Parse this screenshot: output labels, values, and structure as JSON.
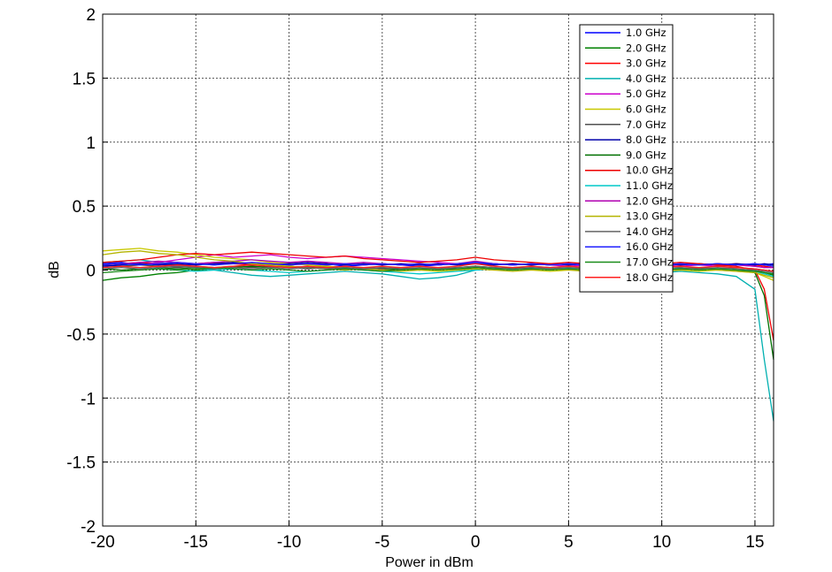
{
  "chart_data": {
    "type": "line",
    "title": "",
    "xlabel": "Power in dBm",
    "ylabel": "dB",
    "xlim": [
      -20,
      16
    ],
    "ylim": [
      -2,
      2
    ],
    "x_ticks": [
      "-20",
      "-15",
      "-10",
      "-5",
      "0",
      "5",
      "10",
      "15"
    ],
    "y_ticks": [
      "2",
      "1.5",
      "1",
      "0.5",
      "0",
      "-0.5",
      "-1",
      "-1.5",
      "-2"
    ],
    "grid": true,
    "legend_position": "top-right",
    "x": [
      -20,
      -19,
      -18,
      -17,
      -16,
      -15,
      -14,
      -13,
      -12,
      -11,
      -10,
      -9,
      -8,
      -7,
      -6,
      -5,
      -4,
      -3,
      -2,
      -1,
      0,
      1,
      2,
      3,
      4,
      5,
      6,
      7,
      8,
      9,
      10,
      11,
      12,
      13,
      14,
      15,
      15.5,
      16
    ],
    "series": [
      {
        "name": "1.0 GHz",
        "color": "#0000ff",
        "values": [
          0.05,
          0.06,
          0.04,
          0.05,
          0.03,
          0.05,
          0.04,
          0.06,
          0.05,
          0.04,
          0.05,
          0.04,
          0.05,
          0.03,
          0.04,
          0.05,
          0.04,
          0.03,
          0.04,
          0.05,
          0.06,
          0.05,
          0.04,
          0.05,
          0.04,
          0.05,
          0.04,
          0.05,
          0.04,
          0.05,
          0.04,
          0.05,
          0.04,
          0.05,
          0.04,
          0.05,
          0.04,
          0.05
        ]
      },
      {
        "name": "2.0 GHz",
        "color": "#008000",
        "values": [
          -0.08,
          -0.06,
          -0.05,
          -0.03,
          -0.02,
          0.0,
          0.01,
          0.02,
          0.03,
          0.02,
          0.03,
          0.02,
          0.03,
          0.02,
          0.01,
          0.02,
          0.01,
          0.0,
          0.01,
          0.02,
          0.03,
          0.02,
          0.01,
          0.02,
          0.01,
          0.02,
          0.01,
          0.02,
          0.01,
          0.02,
          0.01,
          0.02,
          0.0,
          0.01,
          0.0,
          0.0,
          -0.02,
          -0.04
        ]
      },
      {
        "name": "3.0 GHz",
        "color": "#ff0000",
        "values": [
          0.04,
          0.05,
          0.06,
          0.05,
          0.04,
          0.05,
          0.06,
          0.05,
          0.04,
          0.05,
          0.04,
          0.05,
          0.04,
          0.05,
          0.04,
          0.05,
          0.04,
          0.05,
          0.04,
          0.05,
          0.05,
          0.04,
          0.05,
          0.04,
          0.05,
          0.04,
          0.05,
          0.04,
          0.05,
          0.04,
          0.05,
          0.04,
          0.05,
          0.04,
          0.05,
          0.04,
          0.03,
          0.02
        ]
      },
      {
        "name": "4.0 GHz",
        "color": "#00b0b0",
        "values": [
          0.06,
          0.07,
          0.08,
          0.06,
          0.04,
          0.02,
          0.0,
          -0.02,
          -0.04,
          -0.05,
          -0.04,
          -0.03,
          -0.02,
          -0.01,
          -0.02,
          -0.03,
          -0.05,
          -0.07,
          -0.06,
          -0.04,
          0.0,
          0.01,
          0.02,
          0.03,
          0.02,
          0.03,
          0.02,
          0.01,
          0.0,
          -0.01,
          -0.02,
          -0.01,
          -0.02,
          -0.03,
          -0.05,
          -0.15,
          -0.7,
          -1.18
        ]
      },
      {
        "name": "5.0 GHz",
        "color": "#cc00cc",
        "values": [
          0.02,
          0.03,
          0.04,
          0.06,
          0.08,
          0.1,
          0.12,
          0.1,
          0.11,
          0.12,
          0.1,
          0.09,
          0.1,
          0.11,
          0.1,
          0.09,
          0.08,
          0.07,
          0.06,
          0.05,
          0.06,
          0.05,
          0.04,
          0.05,
          0.04,
          0.03,
          0.04,
          0.03,
          0.04,
          0.03,
          0.04,
          0.03,
          0.04,
          0.03,
          0.04,
          0.03,
          0.02,
          0.02
        ]
      },
      {
        "name": "6.0 GHz",
        "color": "#c8c800",
        "values": [
          0.15,
          0.16,
          0.17,
          0.15,
          0.14,
          0.12,
          0.1,
          0.09,
          0.08,
          0.06,
          0.05,
          0.04,
          0.03,
          0.02,
          0.01,
          0.0,
          0.01,
          0.0,
          -0.01,
          0.0,
          0.01,
          0.0,
          0.01,
          0.0,
          -0.01,
          0.0,
          0.01,
          0.0,
          -0.01,
          0.0,
          0.01,
          0.0,
          -0.01,
          0.0,
          -0.01,
          -0.02,
          -0.05,
          -0.08
        ]
      },
      {
        "name": "7.0 GHz",
        "color": "#505050",
        "values": [
          0.04,
          0.03,
          0.04,
          0.03,
          0.02,
          0.03,
          0.02,
          0.03,
          0.02,
          0.03,
          0.02,
          0.01,
          0.02,
          0.01,
          0.02,
          0.01,
          0.02,
          0.01,
          0.02,
          0.01,
          0.02,
          0.01,
          0.02,
          0.01,
          0.02,
          0.01,
          0.02,
          0.01,
          0.02,
          0.01,
          0.02,
          0.01,
          0.02,
          0.01,
          0.02,
          0.01,
          0.0,
          -0.01
        ]
      },
      {
        "name": "8.0 GHz",
        "color": "#0000aa",
        "values": [
          0.03,
          0.04,
          0.05,
          0.04,
          0.05,
          0.04,
          0.05,
          0.06,
          0.05,
          0.04,
          0.05,
          0.06,
          0.05,
          0.04,
          0.05,
          0.04,
          0.05,
          0.04,
          0.05,
          0.04,
          0.05,
          0.04,
          0.05,
          0.04,
          0.05,
          0.04,
          0.05,
          0.04,
          0.05,
          0.04,
          0.05,
          0.04,
          0.05,
          0.04,
          0.05,
          0.04,
          0.05,
          0.04
        ]
      },
      {
        "name": "9.0 GHz",
        "color": "#007000",
        "values": [
          0.01,
          0.0,
          0.01,
          0.02,
          0.01,
          0.02,
          0.01,
          0.02,
          0.03,
          0.02,
          0.03,
          0.02,
          0.01,
          0.02,
          0.01,
          0.0,
          0.01,
          0.0,
          0.01,
          0.0,
          0.02,
          0.01,
          0.02,
          0.01,
          0.02,
          0.01,
          0.02,
          0.01,
          0.02,
          0.01,
          0.02,
          0.01,
          0.02,
          0.01,
          0.0,
          -0.02,
          -0.2,
          -0.7
        ]
      },
      {
        "name": "10.0 GHz",
        "color": "#ee0000",
        "values": [
          0.06,
          0.07,
          0.08,
          0.1,
          0.12,
          0.13,
          0.12,
          0.13,
          0.14,
          0.13,
          0.12,
          0.11,
          0.1,
          0.11,
          0.09,
          0.08,
          0.07,
          0.06,
          0.07,
          0.08,
          0.1,
          0.08,
          0.07,
          0.06,
          0.05,
          0.06,
          0.05,
          0.06,
          0.05,
          0.06,
          0.05,
          0.06,
          0.05,
          0.04,
          0.03,
          0.0,
          -0.15,
          -0.55
        ]
      },
      {
        "name": "11.0 GHz",
        "color": "#00c8c8",
        "values": [
          0.02,
          0.03,
          0.02,
          0.01,
          0.0,
          -0.01,
          0.0,
          0.01,
          0.0,
          -0.01,
          -0.02,
          -0.01,
          0.0,
          0.01,
          0.0,
          -0.01,
          -0.02,
          -0.03,
          -0.02,
          -0.01,
          0.0,
          0.01,
          0.0,
          0.01,
          0.02,
          0.01,
          0.02,
          0.01,
          0.02,
          0.01,
          0.02,
          0.01,
          0.0,
          0.01,
          0.0,
          -0.01,
          -0.03,
          -0.05
        ]
      },
      {
        "name": "12.0 GHz",
        "color": "#b000b0",
        "values": [
          0.04,
          0.05,
          0.06,
          0.07,
          0.06,
          0.05,
          0.06,
          0.07,
          0.08,
          0.07,
          0.06,
          0.07,
          0.06,
          0.05,
          0.06,
          0.05,
          0.04,
          0.05,
          0.04,
          0.05,
          0.07,
          0.05,
          0.04,
          0.05,
          0.04,
          0.05,
          0.04,
          0.05,
          0.04,
          0.05,
          0.04,
          0.05,
          0.04,
          0.05,
          0.04,
          0.03,
          0.02,
          0.02
        ]
      },
      {
        "name": "13.0 GHz",
        "color": "#b4b400",
        "values": [
          0.12,
          0.14,
          0.15,
          0.13,
          0.12,
          0.1,
          0.08,
          0.07,
          0.05,
          0.04,
          0.03,
          0.02,
          0.01,
          0.0,
          0.01,
          0.0,
          -0.01,
          0.0,
          0.01,
          0.0,
          0.01,
          0.0,
          -0.01,
          0.0,
          0.01,
          0.0,
          -0.01,
          0.0,
          0.01,
          0.0,
          -0.01,
          0.0,
          0.01,
          0.0,
          -0.01,
          -0.02,
          -0.04,
          -0.06
        ]
      },
      {
        "name": "14.0 GHz",
        "color": "#646464",
        "values": [
          0.01,
          0.02,
          0.01,
          0.02,
          0.03,
          0.02,
          0.01,
          0.02,
          0.01,
          0.02,
          0.01,
          0.02,
          0.01,
          0.02,
          0.01,
          0.02,
          0.01,
          0.02,
          0.01,
          0.02,
          0.03,
          0.02,
          0.01,
          0.02,
          0.01,
          0.02,
          0.01,
          0.02,
          0.01,
          0.02,
          0.01,
          0.02,
          0.01,
          0.02,
          0.01,
          0.0,
          -0.01,
          -0.02
        ]
      },
      {
        "name": "16.0 GHz",
        "color": "#2020ff",
        "values": [
          0.04,
          0.05,
          0.04,
          0.05,
          0.06,
          0.05,
          0.04,
          0.05,
          0.06,
          0.05,
          0.04,
          0.05,
          0.04,
          0.05,
          0.04,
          0.05,
          0.04,
          0.05,
          0.04,
          0.05,
          0.06,
          0.05,
          0.04,
          0.05,
          0.04,
          0.05,
          0.04,
          0.05,
          0.04,
          0.05,
          0.04,
          0.05,
          0.04,
          0.05,
          0.04,
          0.05,
          0.04,
          0.03
        ]
      },
      {
        "name": "17.0 GHz",
        "color": "#1a8c1a",
        "values": [
          -0.02,
          -0.01,
          0.0,
          0.01,
          0.0,
          0.01,
          0.02,
          0.01,
          0.0,
          0.01,
          0.0,
          -0.01,
          0.0,
          0.01,
          0.0,
          -0.01,
          0.0,
          0.01,
          0.0,
          0.01,
          0.02,
          0.01,
          0.0,
          0.01,
          0.0,
          0.01,
          0.0,
          0.01,
          0.0,
          0.01,
          0.0,
          0.01,
          0.0,
          0.01,
          0.0,
          -0.01,
          -0.02,
          -0.03
        ]
      },
      {
        "name": "18.0 GHz",
        "color": "#ff2020",
        "values": [
          0.02,
          0.03,
          0.02,
          0.03,
          0.04,
          0.03,
          0.02,
          0.03,
          0.04,
          0.03,
          0.02,
          0.03,
          0.02,
          0.03,
          0.02,
          0.03,
          0.02,
          0.03,
          0.02,
          0.03,
          0.05,
          0.03,
          0.02,
          0.03,
          0.02,
          0.03,
          0.02,
          0.03,
          0.02,
          0.03,
          0.02,
          0.03,
          0.02,
          0.03,
          0.02,
          0.01,
          0.0,
          -0.01
        ]
      }
    ]
  }
}
